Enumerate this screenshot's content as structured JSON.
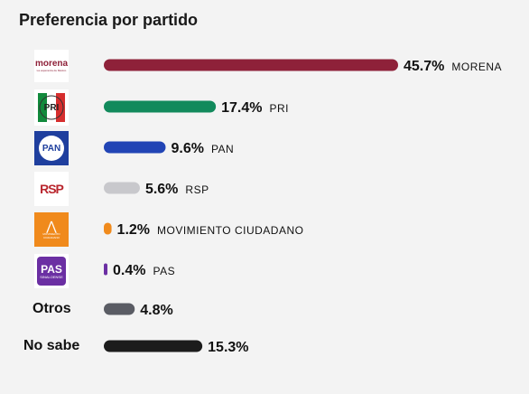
{
  "chart_data": {
    "type": "bar",
    "title": "Preferencia por partido",
    "categories": [
      "MORENA",
      "PRI",
      "PAN",
      "RSP",
      "MOVIMIENTO CIUDADANO",
      "PAS",
      "Otros",
      "No sabe"
    ],
    "values": [
      45.7,
      17.4,
      9.6,
      5.6,
      1.2,
      0.4,
      4.8,
      15.3
    ],
    "value_labels": [
      "45.7%",
      "17.4%",
      "9.6%",
      "5.6%",
      "1.2%",
      "0.4%",
      "4.8%",
      "15.3%"
    ],
    "xlim": [
      0,
      45.7
    ],
    "colors": [
      "#8e2139",
      "#128a5c",
      "#2144b5",
      "#c8c8cc",
      "#f08a1c",
      "#6b2fa3",
      "#5a5c64",
      "#1c1c1c"
    ],
    "grid": false,
    "legend": "none"
  },
  "logos": {
    "morena": {
      "icon": "morena-logo",
      "text": "morena",
      "subtext": "La esperanza de México",
      "color": "#8e2139"
    },
    "pri": {
      "icon": "pri-logo",
      "text": "PRI"
    },
    "pan": {
      "icon": "pan-logo",
      "text": "PAN",
      "color": "#1f3f9e"
    },
    "rsp": {
      "icon": "rsp-logo",
      "text": "RSP"
    },
    "mc": {
      "icon": "movimiento-ciudadano-logo",
      "text": "MOVIMIENTO CIUDADANO",
      "color": "#f08a1c"
    },
    "pas": {
      "icon": "pas-logo",
      "text": "PAS",
      "subtext": "SINALOENSE",
      "color": "#6b2fa3"
    }
  },
  "row_labels": {
    "otros": "Otros",
    "no_sabe": "No sabe"
  }
}
